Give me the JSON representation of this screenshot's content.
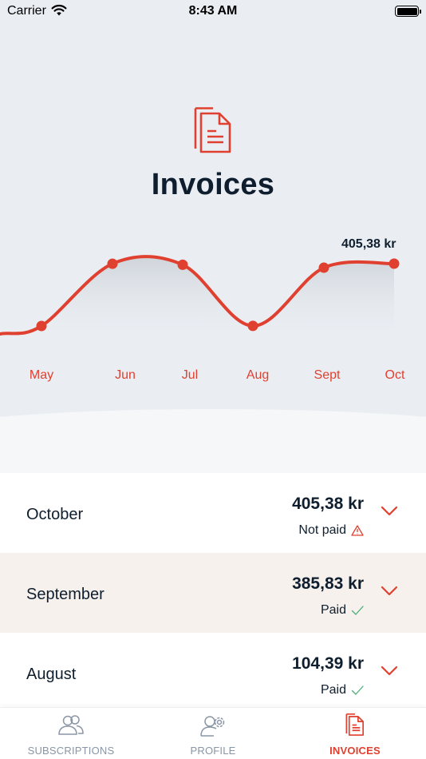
{
  "status_bar": {
    "carrier": "Carrier",
    "time": "8:43 AM"
  },
  "header": {
    "title": "Invoices",
    "icon": "document-icon"
  },
  "colors": {
    "accent": "#e0402f",
    "text_dark": "#0f1e2e",
    "hero_bg": "#eaeef3",
    "highlight_row": "#f7f1ed",
    "muted": "#8a96a5",
    "paid_check": "#4caf7a"
  },
  "chart_data": {
    "type": "line",
    "categories": [
      "May",
      "Jun",
      "Jul",
      "Aug",
      "Sept",
      "Oct"
    ],
    "values": [
      104.0,
      405.0,
      400.0,
      104.39,
      385.83,
      405.38
    ],
    "highlight_label": "405,38  kr",
    "grid": false
  },
  "invoices": [
    {
      "month": "October",
      "amount": "405,38 kr",
      "status": "Not paid",
      "status_icon": "warning-icon",
      "highlighted": false
    },
    {
      "month": "September",
      "amount": "385,83 kr",
      "status": "Paid",
      "status_icon": "check-icon",
      "highlighted": true
    },
    {
      "month": "August",
      "amount": "104,39 kr",
      "status": "Paid",
      "status_icon": "check-icon",
      "highlighted": false
    }
  ],
  "tabs": [
    {
      "label": "SUBSCRIPTIONS",
      "icon": "users-icon",
      "active": false
    },
    {
      "label": "PROFILE",
      "icon": "user-settings-icon",
      "active": false
    },
    {
      "label": "INVOICES",
      "icon": "document-icon",
      "active": true
    }
  ]
}
